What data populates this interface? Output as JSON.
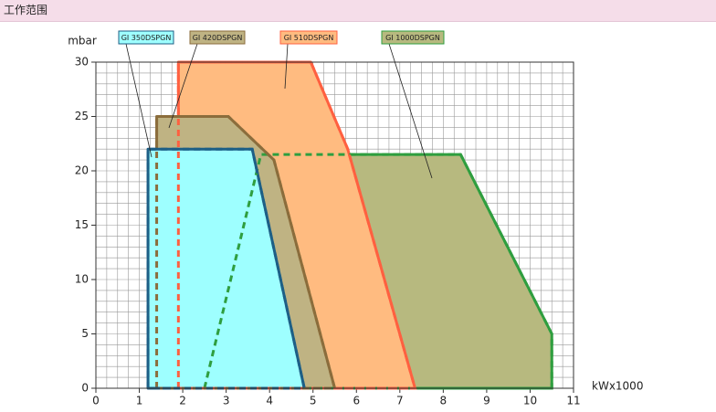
{
  "header": {
    "title": "工作范围"
  },
  "chart_data": {
    "type": "area-polygon",
    "y_label": "mbar",
    "x_label": "kWx1000",
    "xlim": [
      0,
      11
    ],
    "ylim": [
      0,
      30
    ],
    "xticks": [
      0,
      1,
      2,
      3,
      4,
      5,
      6,
      7,
      8,
      9,
      10,
      11
    ],
    "yticks": [
      0,
      5,
      10,
      15,
      20,
      25,
      30
    ],
    "grid": true,
    "series": [
      {
        "name": "GI 1000DSPGN",
        "color": "#2f9e3f",
        "fill": "#b7b97f",
        "x": [
          2.5,
          3.8,
          8.4,
          10.5,
          10.5
        ],
        "values": [
          0,
          21.5,
          21.5,
          5,
          0
        ]
      },
      {
        "name": "GI 510DSPGN",
        "color": "#ff6040",
        "fill": "#ffbb80",
        "x": [
          1.9,
          1.9,
          4.95,
          5.8,
          7.35
        ],
        "values": [
          0,
          30,
          30,
          22,
          0
        ]
      },
      {
        "name": "GI 420DSPGN",
        "color": "#8b6d3c",
        "fill": "#bfb383",
        "x": [
          1.4,
          1.4,
          3.05,
          4.1,
          5.5
        ],
        "values": [
          0,
          25,
          25,
          21,
          0
        ]
      },
      {
        "name": "GI 350DSPGN",
        "color": "#1d5f86",
        "fill": "#9effff",
        "x": [
          1.2,
          1.2,
          3.6,
          4.8
        ],
        "values": [
          0,
          22,
          22,
          0
        ]
      }
    ]
  }
}
